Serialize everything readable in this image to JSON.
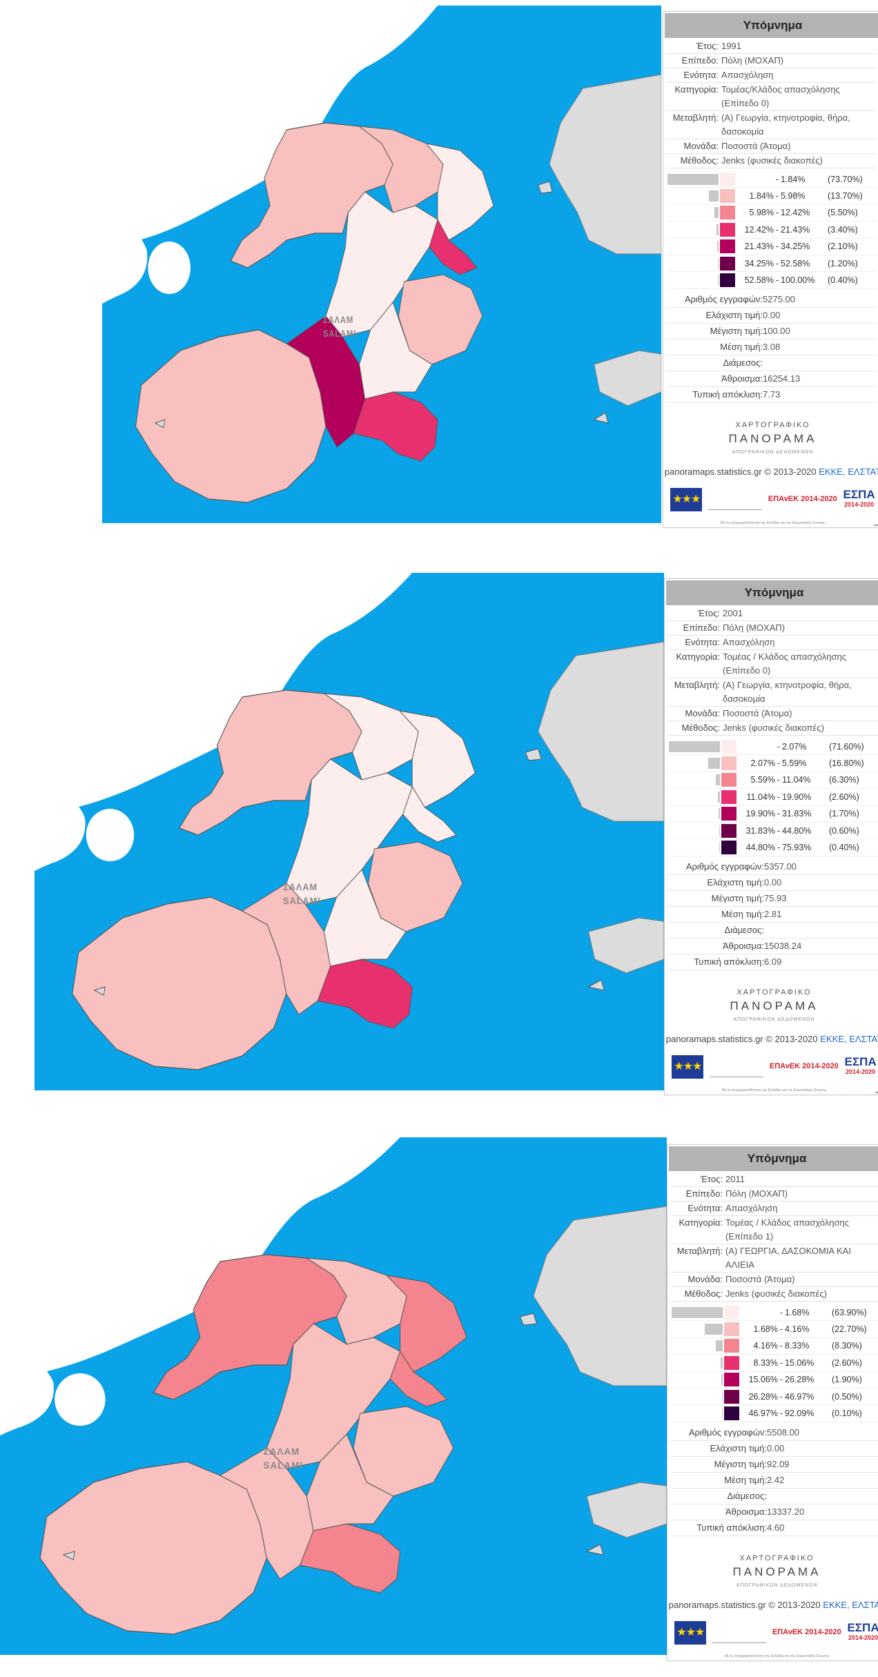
{
  "colors": {
    "sea": "#0aa3e8",
    "land": "#dcdcdc",
    "classes": [
      "#fdeeee",
      "#f9c0c0",
      "#f4858f",
      "#e8306f",
      "#b3005b",
      "#6e004a",
      "#2e003e"
    ]
  },
  "map": {
    "label_greek": "ΣΑΛΑΜ",
    "label_latin": "SALAMI"
  },
  "panels": [
    {
      "legend": {
        "title": "Υπόμνημα",
        "meta": [
          {
            "k": "Έτος:",
            "v": "1991"
          },
          {
            "k": "Επίπεδο:",
            "v": "Πόλη (ΜΟΧΑΠ)"
          },
          {
            "k": "Ενότητα:",
            "v": "Απασχόληση"
          },
          {
            "k": "Κατηγορία:",
            "v": "Τομέας/Κλάδος απασχόλησης (Επίπεδο 0)"
          },
          {
            "k": "Μεταβλητή:",
            "v": "(Α) Γεωργία, κτηνοτροφία, θήρα, δασοκομία"
          },
          {
            "k": "Μονάδα:",
            "v": "Ποσοστά (Άτομα)"
          },
          {
            "k": "Μέθοδος:",
            "v": "Jenks (φυσικές διακοπές)"
          }
        ],
        "classes": [
          {
            "lo": "",
            "hi": "1.84%",
            "pct": "(73.70%)",
            "share": 73.7
          },
          {
            "lo": "1.84%",
            "hi": "5.98%",
            "pct": "(13.70%)",
            "share": 13.7
          },
          {
            "lo": "5.98%",
            "hi": "12.42%",
            "pct": "(5.50%)",
            "share": 5.5
          },
          {
            "lo": "12.42%",
            "hi": "21.43%",
            "pct": "(3.40%)",
            "share": 3.4
          },
          {
            "lo": "21.43%",
            "hi": "34.25%",
            "pct": "(2.10%)",
            "share": 2.1
          },
          {
            "lo": "34.25%",
            "hi": "52.58%",
            "pct": "(1.20%)",
            "share": 1.2
          },
          {
            "lo": "52.58%",
            "hi": "100.00%",
            "pct": "(0.40%)",
            "share": 0.4
          }
        ],
        "stats": [
          {
            "k": "Αριθμός εγγραφών:",
            "v": "5275.00"
          },
          {
            "k": "Ελάχιστη τιμή:",
            "v": "0.00"
          },
          {
            "k": "Μέγιστη τιμή:",
            "v": "100.00"
          },
          {
            "k": "Μέση τιμή:",
            "v": "3.08"
          },
          {
            "k": "Διάμεσος:",
            "v": ""
          },
          {
            "k": "Άθροισμα:",
            "v": "16254.13"
          },
          {
            "k": "Τυπική απόκλιση:",
            "v": "7.73"
          }
        ]
      },
      "regions": {
        "north_w": 1,
        "north_c": 1,
        "north_e": 0,
        "north_pink": 3,
        "mid": 0,
        "mid_e": 1,
        "south_w": 1,
        "south_c": 4,
        "south_e": 3,
        "south_rim": 0
      }
    },
    {
      "legend": {
        "title": "Υπόμνημα",
        "meta": [
          {
            "k": "Έτος:",
            "v": "2001"
          },
          {
            "k": "Επίπεδο:",
            "v": "Πόλη (ΜΟΧΑΠ)"
          },
          {
            "k": "Ενότητα:",
            "v": "Απασχόληση"
          },
          {
            "k": "Κατηγορία:",
            "v": "Τομέας / Κλάδος απασχόλησης (Επίπεδο 0)"
          },
          {
            "k": "Μεταβλητή:",
            "v": "(Α) Γεωργία, κτηνοτροφία, θήρα, δασοκομία"
          },
          {
            "k": "Μονάδα:",
            "v": "Ποσοστά (Άτομα)"
          },
          {
            "k": "Μέθοδος:",
            "v": "Jenks (φυσικές διακοπές)"
          }
        ],
        "classes": [
          {
            "lo": "",
            "hi": "2.07%",
            "pct": "(71.60%)",
            "share": 71.6
          },
          {
            "lo": "2.07%",
            "hi": "5.59%",
            "pct": "(16.80%)",
            "share": 16.8
          },
          {
            "lo": "5.59%",
            "hi": "11.04%",
            "pct": "(6.30%)",
            "share": 6.3
          },
          {
            "lo": "11.04%",
            "hi": "19.90%",
            "pct": "(2.60%)",
            "share": 2.6
          },
          {
            "lo": "19.90%",
            "hi": "31.83%",
            "pct": "(1.70%)",
            "share": 1.7
          },
          {
            "lo": "31.83%",
            "hi": "44.80%",
            "pct": "(0.60%)",
            "share": 0.6
          },
          {
            "lo": "44.80%",
            "hi": "75.93%",
            "pct": "(0.40%)",
            "share": 0.4
          }
        ],
        "stats": [
          {
            "k": "Αριθμός εγγραφών:",
            "v": "5357.00"
          },
          {
            "k": "Ελάχιστη τιμή:",
            "v": "0.00"
          },
          {
            "k": "Μέγιστη τιμή:",
            "v": "75.93"
          },
          {
            "k": "Μέση τιμή:",
            "v": "2.81"
          },
          {
            "k": "Διάμεσος:",
            "v": ""
          },
          {
            "k": "Άθροισμα:",
            "v": "15038.24"
          },
          {
            "k": "Τυπική απόκλιση:",
            "v": "6.09"
          }
        ]
      },
      "regions": {
        "north_w": 1,
        "north_c": 0,
        "north_e": 0,
        "north_pink": 0,
        "mid": 0,
        "mid_e": 1,
        "south_w": 1,
        "south_c": 1,
        "south_e": 3,
        "south_rim": 0
      }
    },
    {
      "legend": {
        "title": "Υπόμνημα",
        "meta": [
          {
            "k": "Έτος:",
            "v": "2011"
          },
          {
            "k": "Επίπεδο:",
            "v": "Πόλη (ΜΟΧΑΠ)"
          },
          {
            "k": "Ενότητα:",
            "v": "Απασχόληση"
          },
          {
            "k": "Κατηγορία:",
            "v": "Τομέας / Κλάδος απασχόλησης (Επίπεδο 1)"
          },
          {
            "k": "Μεταβλητή:",
            "v": "(Α) ΓΕΩΡΓΙΑ, ΔΑΣΟΚΟΜΙΑ ΚΑΙ ΑΛΙΕΙΑ"
          },
          {
            "k": "Μονάδα:",
            "v": "Ποσοστά (Άτομα)"
          },
          {
            "k": "Μέθοδος:",
            "v": "Jenks (φυσικές διακοπές)"
          }
        ],
        "classes": [
          {
            "lo": "",
            "hi": "1.68%",
            "pct": "(63.90%)",
            "share": 63.9
          },
          {
            "lo": "1.68%",
            "hi": "4.16%",
            "pct": "(22.70%)",
            "share": 22.7
          },
          {
            "lo": "4.16%",
            "hi": "8.33%",
            "pct": "(8.30%)",
            "share": 8.3
          },
          {
            "lo": "8.33%",
            "hi": "15.06%",
            "pct": "(2.60%)",
            "share": 2.6
          },
          {
            "lo": "15.06%",
            "hi": "26.28%",
            "pct": "(1.90%)",
            "share": 1.9
          },
          {
            "lo": "26.28%",
            "hi": "46.97%",
            "pct": "(0.50%)",
            "share": 0.5
          },
          {
            "lo": "46.97%",
            "hi": "92.09%",
            "pct": "(0.10%)",
            "share": 0.1
          }
        ],
        "stats": [
          {
            "k": "Αριθμός εγγραφών:",
            "v": "5508.00"
          },
          {
            "k": "Ελάχιστη τιμή:",
            "v": "0.00"
          },
          {
            "k": "Μέγιστη τιμή:",
            "v": "92.09"
          },
          {
            "k": "Μέση τιμή:",
            "v": "2.42"
          },
          {
            "k": "Διάμεσος:",
            "v": ""
          },
          {
            "k": "Άθροισμα:",
            "v": "13337.20"
          },
          {
            "k": "Τυπική απόκλιση:",
            "v": "4.60"
          }
        ]
      },
      "regions": {
        "north_w": 2,
        "north_c": 1,
        "north_e": 2,
        "north_pink": 2,
        "mid": 1,
        "mid_e": 1,
        "south_w": 1,
        "south_c": 1,
        "south_e": 2,
        "south_rim": 1
      }
    }
  ],
  "branding": {
    "top": "ΧΑΡΤΟΓΡΑΦΙΚΟ",
    "mid": "ΠΑΝΟΡΑΜΑ",
    "bot": "ΑΠΟΓΡΑΦΙΚΩΝ ΔΕΔΟΜΕΝΩΝ",
    "credit_prefix": "panoramaps.statistics.gr © 2013-2020",
    "credit_link": "ΕΚΚΕ, ΕΛΣΤΑΤ",
    "eu_text": "Ευρωπαϊκή Ένωση",
    "epanek": "ΕΠΑνΕΚ 2014-2020",
    "espa": "ΕΣΠΑ",
    "espa_years": "2014-2020",
    "fine_print": "Με τη συγχρηματοδότηση της Ελλάδας και της Ευρωπαϊκής Ένωσης"
  }
}
